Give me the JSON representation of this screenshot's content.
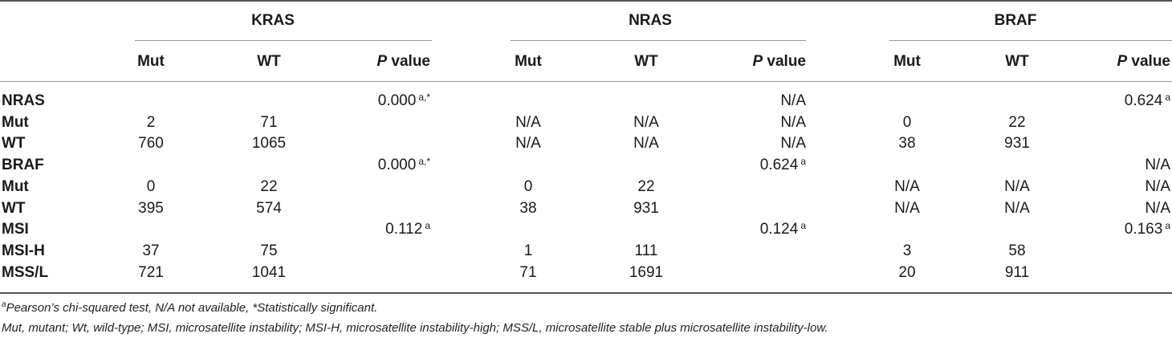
{
  "groups": [
    "KRAS",
    "NRAS",
    "BRAF"
  ],
  "subheaders": {
    "mut": "Mut",
    "wt": "WT",
    "p_italic": "P",
    "p_rest": " value"
  },
  "rows": [
    {
      "label": "NRAS",
      "bold": true,
      "cells": [
        "",
        "",
        "0.000",
        "",
        "",
        "N/A",
        "",
        "",
        "0.624"
      ],
      "sups": [
        "",
        "",
        "a,*",
        "",
        "",
        "",
        "",
        "",
        "a"
      ]
    },
    {
      "label": "Mut",
      "bold": true,
      "cells": [
        "2",
        "71",
        "",
        "N/A",
        "N/A",
        "N/A",
        "0",
        "22",
        ""
      ],
      "sups": [
        "",
        "",
        "",
        "",
        "",
        "",
        "",
        "",
        ""
      ]
    },
    {
      "label": "WT",
      "bold": true,
      "cells": [
        "760",
        "1065",
        "",
        "N/A",
        "N/A",
        "N/A",
        "38",
        "931",
        ""
      ],
      "sups": [
        "",
        "",
        "",
        "",
        "",
        "",
        "",
        "",
        ""
      ]
    },
    {
      "label": "BRAF",
      "bold": true,
      "cells": [
        "",
        "",
        "0.000",
        "",
        "",
        "0.624",
        "",
        "",
        "N/A"
      ],
      "sups": [
        "",
        "",
        "a,*",
        "",
        "",
        "a",
        "",
        "",
        ""
      ]
    },
    {
      "label": "Mut",
      "bold": true,
      "cells": [
        "0",
        "22",
        "",
        "0",
        "22",
        "",
        "N/A",
        "N/A",
        "N/A"
      ],
      "sups": [
        "",
        "",
        "",
        "",
        "",
        "",
        "",
        "",
        ""
      ]
    },
    {
      "label": "WT",
      "bold": true,
      "cells": [
        "395",
        "574",
        "",
        "38",
        "931",
        "",
        "N/A",
        "N/A",
        "N/A"
      ],
      "sups": [
        "",
        "",
        "",
        "",
        "",
        "",
        "",
        "",
        ""
      ]
    },
    {
      "label": "MSI",
      "bold": true,
      "cells": [
        "",
        "",
        "0.112",
        "",
        "",
        "0.124",
        "",
        "",
        "0.163"
      ],
      "sups": [
        "",
        "",
        "a",
        "",
        "",
        "a",
        "",
        "",
        "a"
      ]
    },
    {
      "label": "MSI-H",
      "bold": true,
      "cells": [
        "37",
        "75",
        "",
        "1",
        "111",
        "",
        "3",
        "58",
        ""
      ],
      "sups": [
        "",
        "",
        "",
        "",
        "",
        "",
        "",
        "",
        ""
      ]
    },
    {
      "label": "MSS/L",
      "bold": true,
      "cells": [
        "721",
        "1041",
        "",
        "71",
        "1691",
        "",
        "20",
        "911",
        ""
      ],
      "sups": [
        "",
        "",
        "",
        "",
        "",
        "",
        "",
        "",
        ""
      ]
    }
  ],
  "footnotes": {
    "line1_sup": "a",
    "line1": "Pearson’s chi-squared test, N/A not available, *Statistically significant.",
    "line2": "Mut, mutant; Wt, wild-type; MSI, microsatellite instability; MSI-H, microsatellite instability-high; MSS/L, microsatellite stable plus microsatellite instability-low."
  }
}
